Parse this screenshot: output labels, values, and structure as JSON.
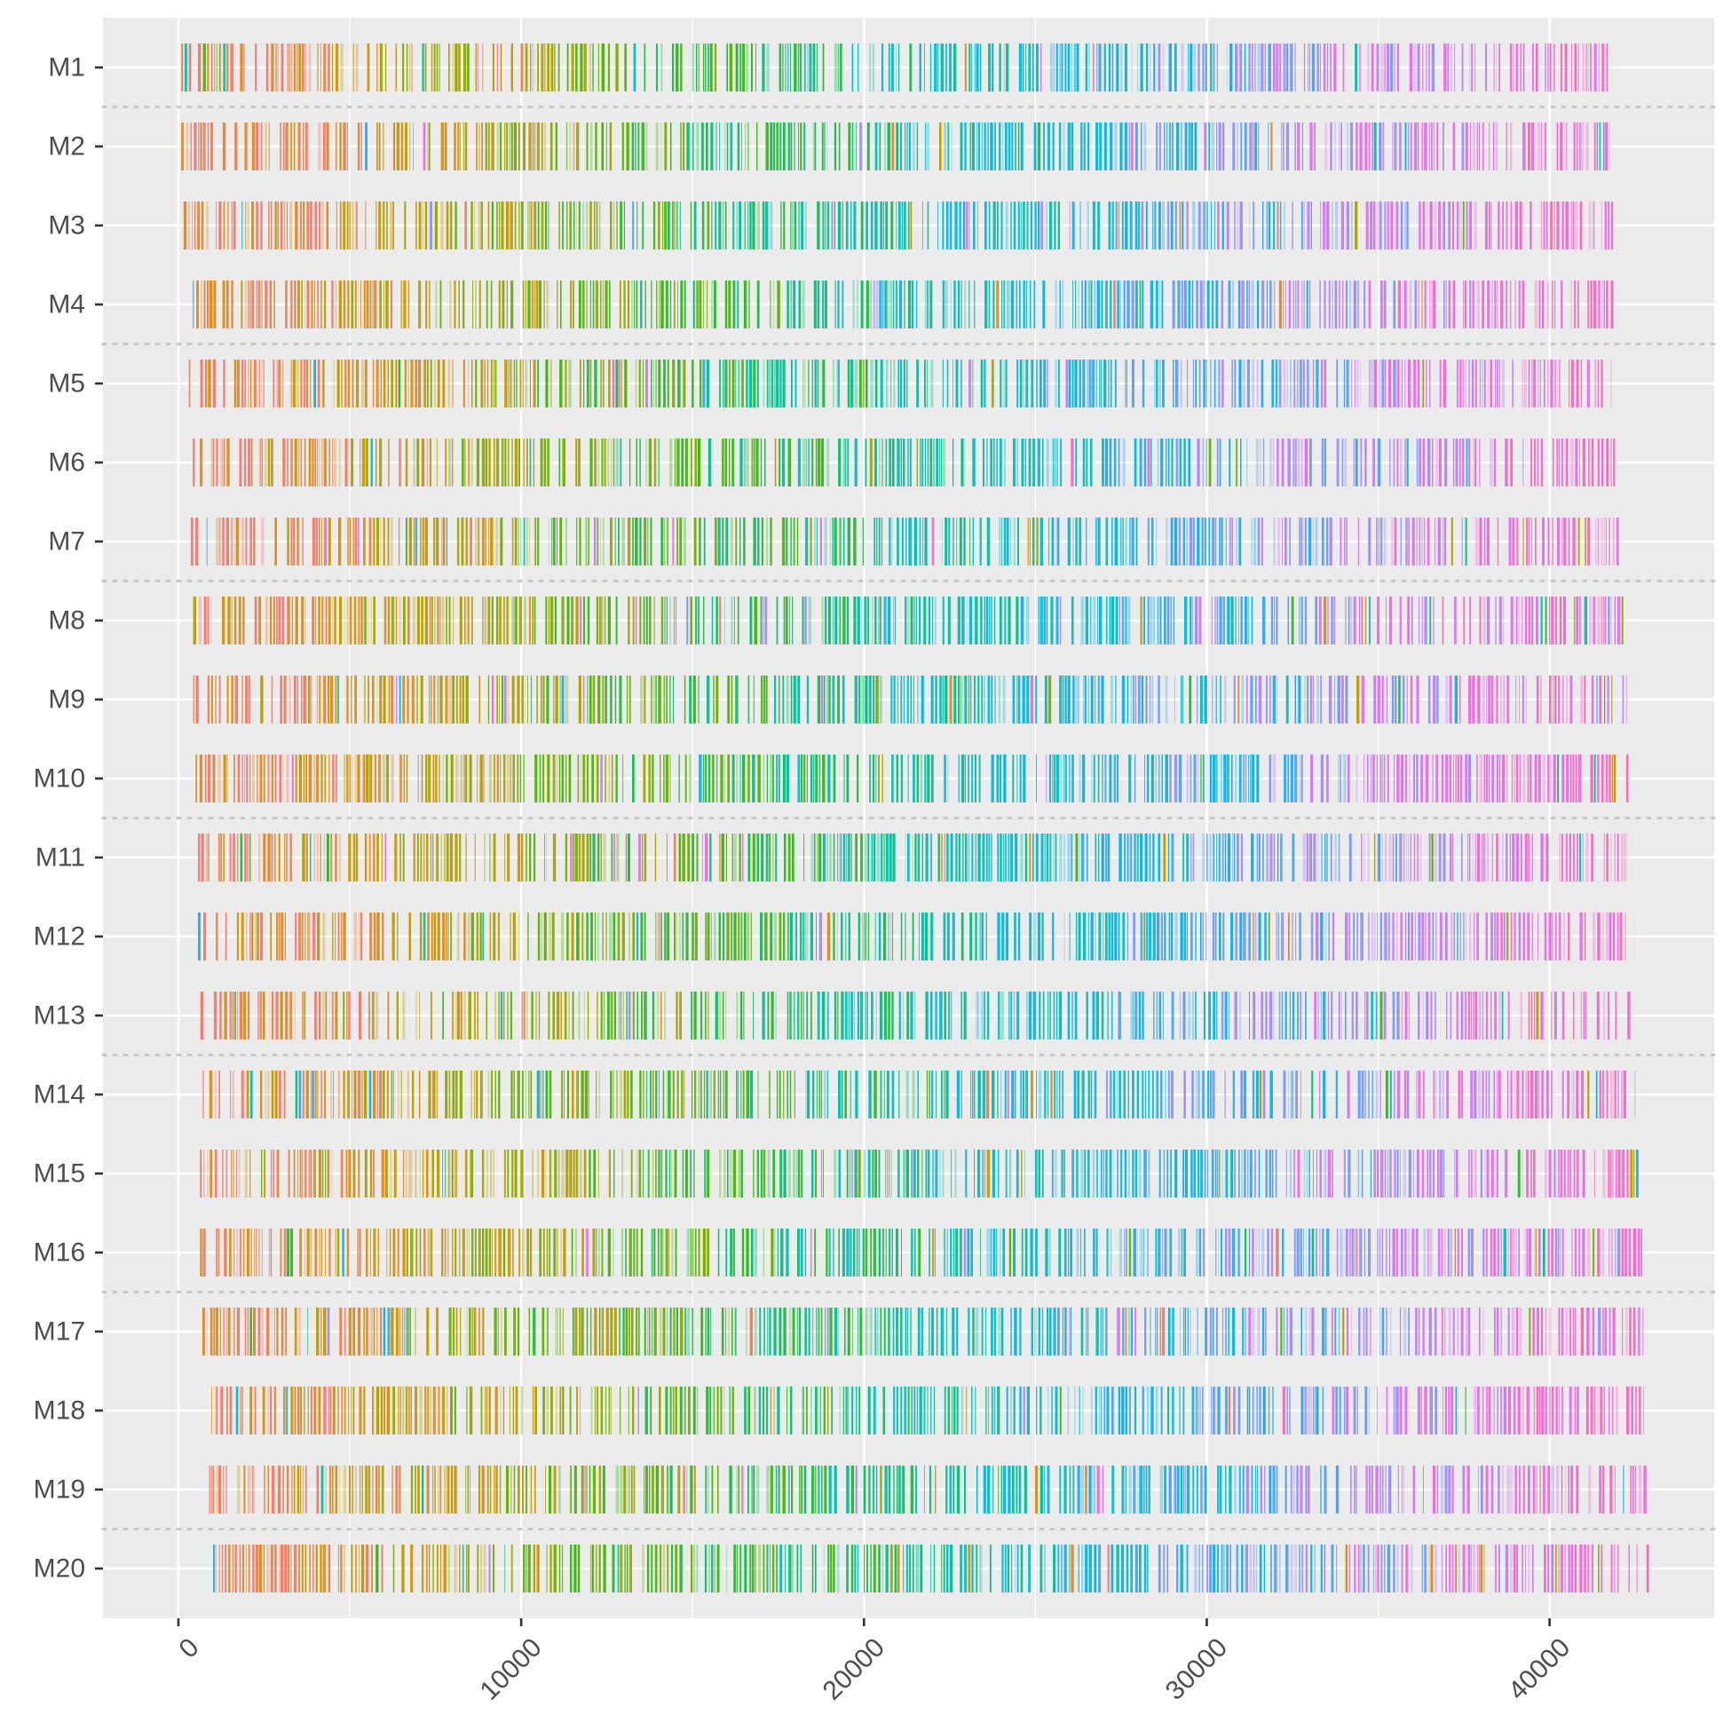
{
  "chart_data": {
    "type": "timeline-strips",
    "title": "",
    "xlabel": "",
    "ylabel": "",
    "xlim": [
      -2200,
      44800
    ],
    "x_ticks": [
      0,
      10000,
      20000,
      30000,
      40000
    ],
    "x_tick_labels": [
      "0",
      "10000",
      "20000",
      "30000",
      "40000"
    ],
    "x_tick_rotation_deg": -45,
    "grid": true,
    "legend": "none",
    "row_group_separator": "dotted",
    "row_groups_after": [
      "M1",
      "M4",
      "M7",
      "M10",
      "M13",
      "M16",
      "M19"
    ],
    "color_sweep": [
      "#F8766D",
      "#D89000",
      "#A3A500",
      "#39B600",
      "#00BF7D",
      "#00BFC4",
      "#00B0F6",
      "#9590FF",
      "#E76BF3",
      "#FF62BC"
    ],
    "rows": [
      {
        "label": "M1",
        "start": 0,
        "end": 41700
      },
      {
        "label": "M2",
        "start": 50,
        "end": 41750
      },
      {
        "label": "M3",
        "start": 100,
        "end": 41850
      },
      {
        "label": "M4",
        "start": 150,
        "end": 41900
      },
      {
        "label": "M5",
        "start": 200,
        "end": 41950
      },
      {
        "label": "M6",
        "start": 250,
        "end": 42050
      },
      {
        "label": "M7",
        "start": 300,
        "end": 42100
      },
      {
        "label": "M8",
        "start": 350,
        "end": 42150
      },
      {
        "label": "M9",
        "start": 400,
        "end": 42250
      },
      {
        "label": "M10",
        "start": 450,
        "end": 42300
      },
      {
        "label": "M11",
        "start": 500,
        "end": 42300
      },
      {
        "label": "M12",
        "start": 550,
        "end": 42450
      },
      {
        "label": "M13",
        "start": 600,
        "end": 42500
      },
      {
        "label": "M14",
        "start": 650,
        "end": 42500
      },
      {
        "label": "M15",
        "start": 550,
        "end": 42650
      },
      {
        "label": "M16",
        "start": 600,
        "end": 42700
      },
      {
        "label": "M17",
        "start": 650,
        "end": 42750
      },
      {
        "label": "M18",
        "start": 700,
        "end": 42750
      },
      {
        "label": "M19",
        "start": 800,
        "end": 42850
      },
      {
        "label": "M20",
        "start": 850,
        "end": 42900
      }
    ]
  }
}
